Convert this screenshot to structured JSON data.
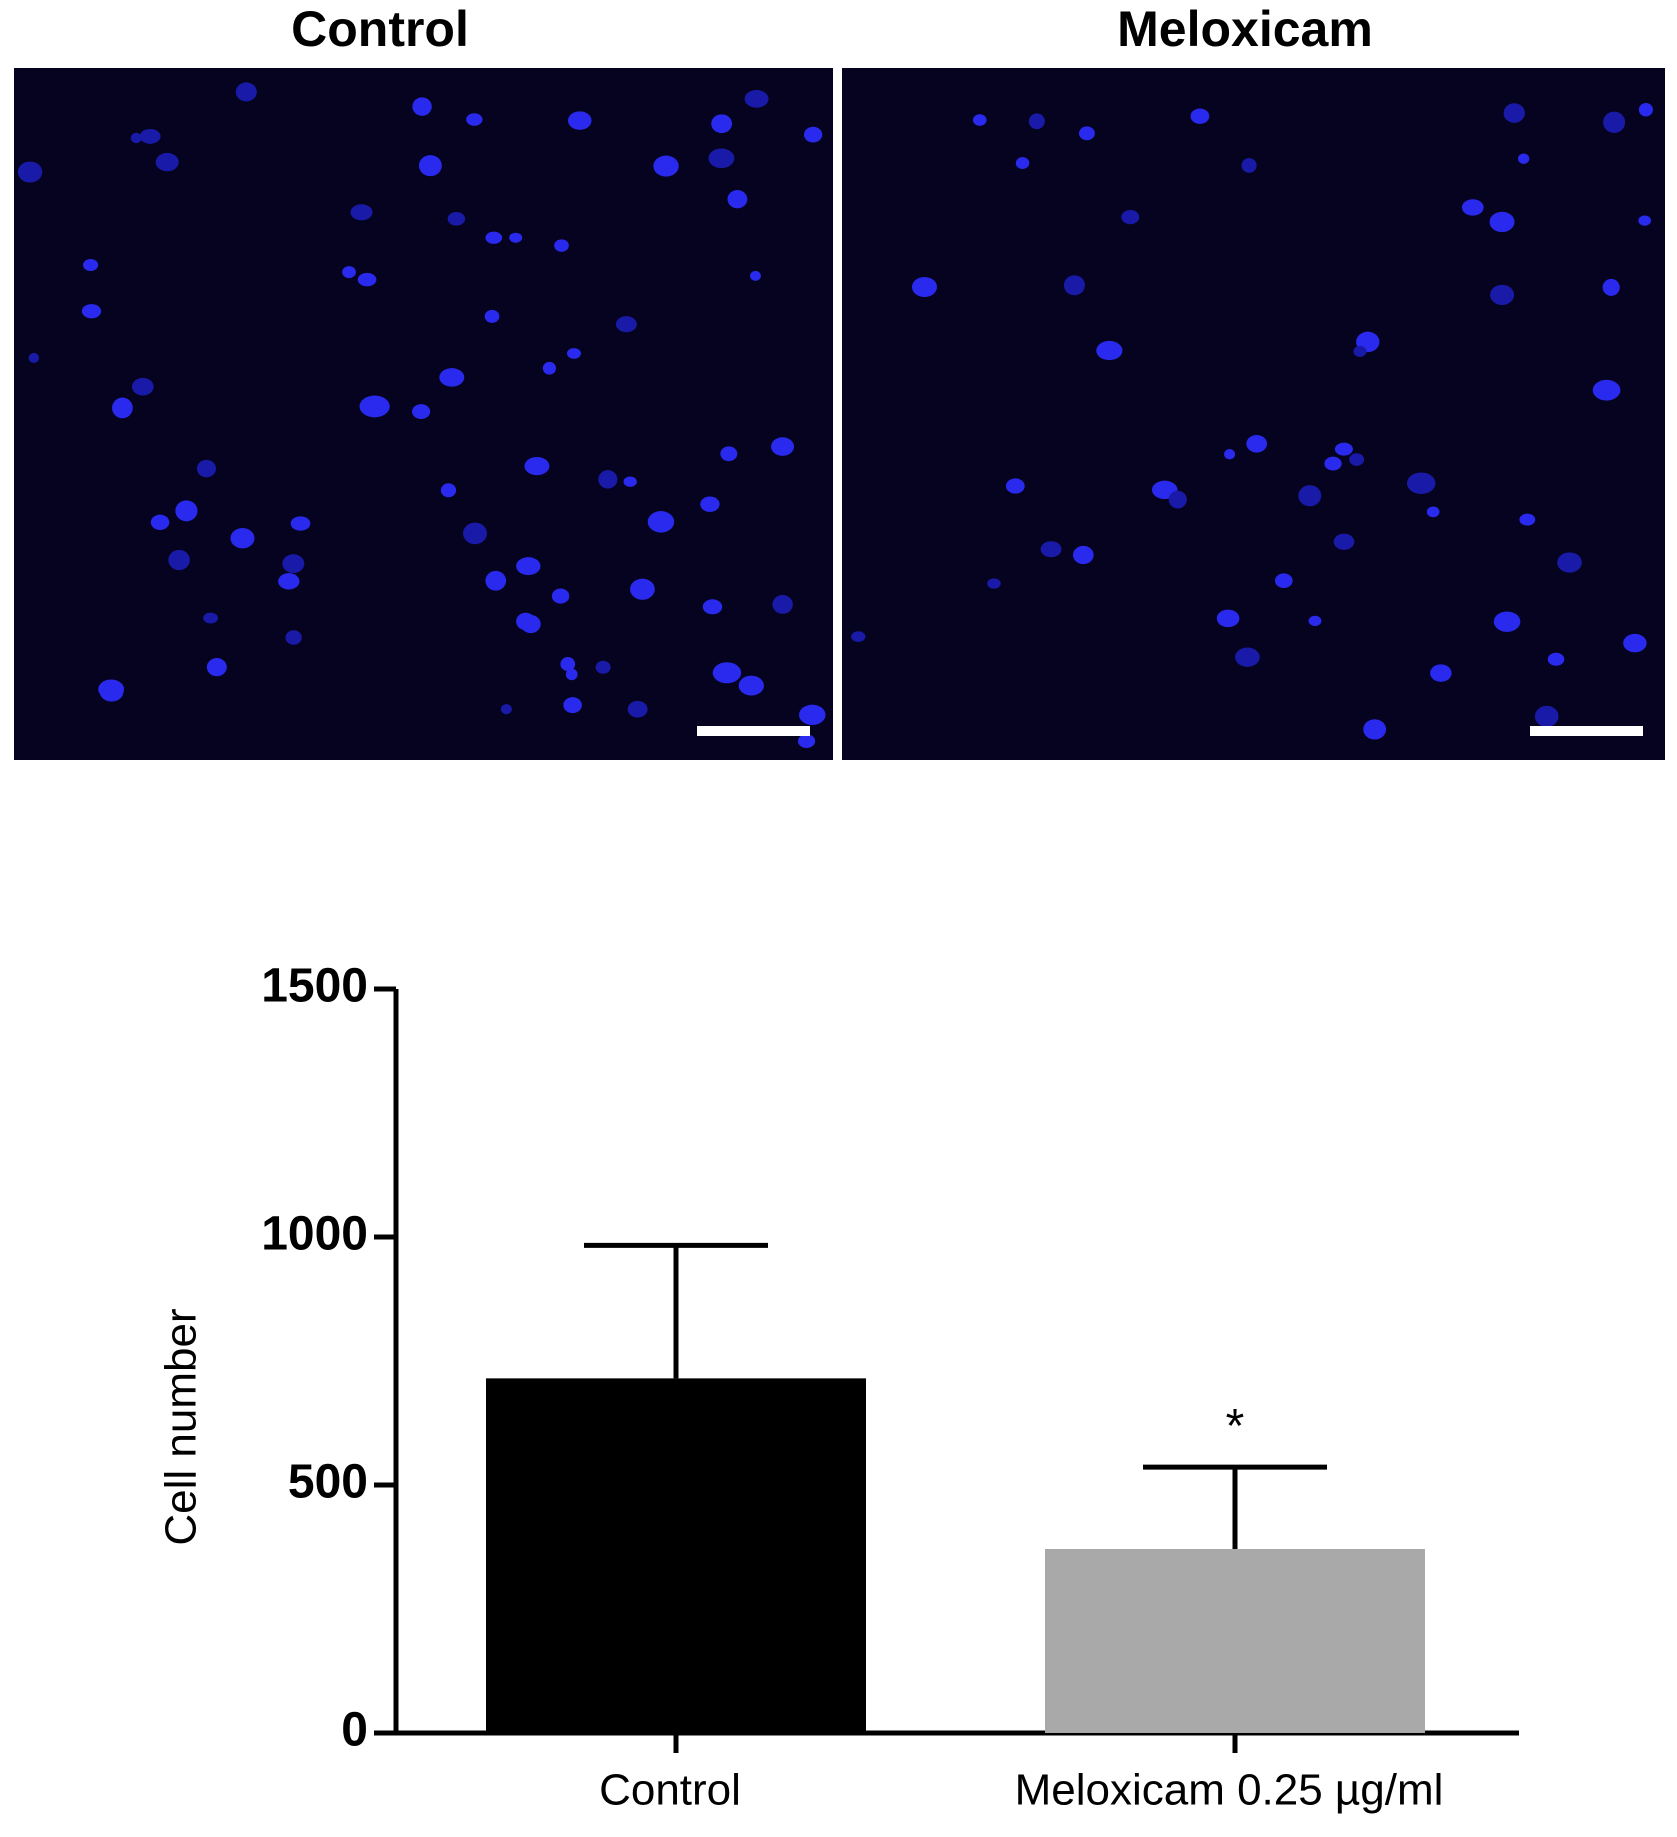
{
  "images": [
    {
      "title": "Control"
    },
    {
      "title": "Meloxicam"
    }
  ],
  "chart_data": {
    "type": "bar",
    "y_label": "Cell number",
    "categories": [
      "Control",
      "Meloxicam 0.25 µg/ml"
    ],
    "values": [
      715,
      371
    ],
    "errors": [
      268,
      165
    ],
    "colors": [
      "#000000",
      "#a9a9a9"
    ],
    "annotations": [
      null,
      "*"
    ],
    "ylim": [
      0,
      1500
    ],
    "yticks": [
      0,
      500,
      1000,
      1500
    ]
  }
}
